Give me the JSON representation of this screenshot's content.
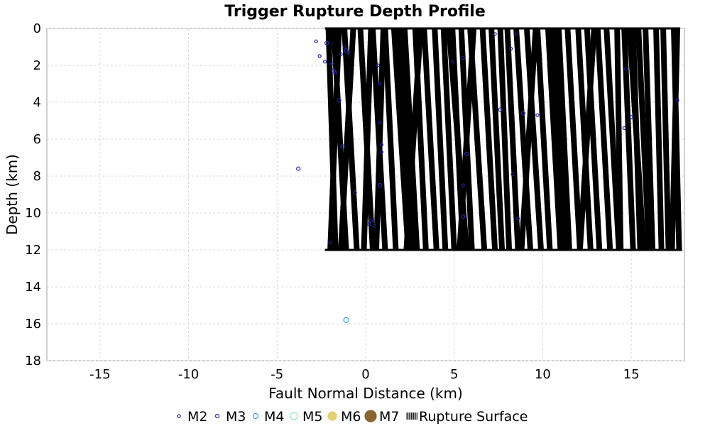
{
  "chart_data": {
    "type": "scatter",
    "title": "Trigger Rupture Depth Profile",
    "xlabel": "Fault Normal Distance (km)",
    "ylabel": "Depth (km)",
    "xlim": [
      -18,
      18
    ],
    "ylim": [
      0,
      18
    ],
    "y_inverted": true,
    "grid": true,
    "x_ticks": [
      -15,
      -10,
      -5,
      0,
      5,
      10,
      15
    ],
    "y_ticks": [
      0,
      2,
      4,
      6,
      8,
      10,
      12,
      14,
      16,
      18
    ],
    "legend_position": "bottom",
    "legend": [
      {
        "key": "M2",
        "label": "M2",
        "color": "#1f1f9a",
        "fill": "none",
        "size": 2
      },
      {
        "key": "M3",
        "label": "M3",
        "color": "#2a2ab0",
        "fill": "none",
        "size": 2.5
      },
      {
        "key": "M4",
        "label": "M4",
        "color": "#2aa7e0",
        "fill": "none",
        "size": 3.5
      },
      {
        "key": "M5",
        "label": "M5",
        "color": "#8fe0b0",
        "fill": "none",
        "size": 5
      },
      {
        "key": "M6",
        "label": "M6",
        "color": "#e3cf74",
        "fill": "#e3cf74",
        "size": 6
      },
      {
        "key": "M7",
        "label": "M7",
        "color": "#8a6530",
        "fill": "#8a6530",
        "size": 8
      },
      {
        "key": "RS",
        "label": "Rupture Surface",
        "color": "#000000",
        "fill": "none",
        "size": 0
      }
    ],
    "rupture_surface": {
      "depth_top": 0,
      "depth_bottom": 12,
      "segments": [
        [
          -2.2,
          -1.8
        ],
        [
          -1.6,
          -2.1
        ],
        [
          -1.9,
          -1.2
        ],
        [
          -1.3,
          -0.6
        ],
        [
          -0.8,
          -1.5
        ],
        [
          -0.4,
          0.3
        ],
        [
          0.2,
          -0.2
        ],
        [
          0.3,
          1.0
        ],
        [
          0.9,
          0.5
        ],
        [
          1.0,
          1.6
        ],
        [
          1.5,
          2.3
        ],
        [
          2.1,
          2.8
        ],
        [
          2.7,
          3.3
        ],
        [
          3.2,
          3.9
        ],
        [
          3.8,
          4.4
        ],
        [
          4.3,
          4.9
        ],
        [
          4.8,
          5.4
        ],
        [
          5.3,
          5.9
        ],
        [
          5.8,
          6.6
        ],
        [
          6.5,
          7.2
        ],
        [
          7.0,
          7.6
        ],
        [
          7.5,
          8.0
        ],
        [
          7.9,
          8.5
        ],
        [
          8.4,
          9.2
        ],
        [
          9.0,
          9.8
        ],
        [
          9.6,
          10.3
        ],
        [
          10.2,
          10.9
        ],
        [
          10.8,
          11.4
        ],
        [
          11.3,
          12.0
        ],
        [
          11.9,
          12.6
        ],
        [
          12.4,
          13.1
        ],
        [
          13.0,
          13.7
        ],
        [
          13.5,
          14.2
        ],
        [
          14.1,
          14.3
        ],
        [
          14.5,
          15.0
        ],
        [
          15.0,
          15.4
        ],
        [
          15.3,
          15.9
        ],
        [
          15.7,
          16.1
        ],
        [
          16.3,
          16.6
        ],
        [
          16.7,
          17.0
        ],
        [
          17.3,
          17.6
        ],
        [
          17.5,
          17.2
        ],
        [
          3.0,
          2.2
        ],
        [
          6.0,
          5.2
        ],
        [
          9.5,
          8.7
        ],
        [
          12.8,
          12.0
        ],
        [
          4.6,
          5.6
        ],
        [
          1.8,
          2.6
        ],
        [
          10.5,
          11.2
        ],
        [
          14.8,
          15.6
        ]
      ]
    },
    "series": [
      {
        "name": "M2",
        "points": [
          [
            -2.8,
            0.7
          ],
          [
            -2.6,
            1.5
          ],
          [
            -2.3,
            1.8
          ],
          [
            -1.9,
            1.9
          ],
          [
            -1.7,
            2.4
          ],
          [
            -1.4,
            1.4
          ],
          [
            -1.2,
            1.0
          ],
          [
            -1.0,
            1.3
          ],
          [
            -2.0,
            11.6
          ],
          [
            -0.6,
            8.9
          ],
          [
            0.3,
            10.4
          ],
          [
            0.5,
            10.7
          ],
          [
            0.8,
            3.0
          ],
          [
            0.9,
            6.3
          ],
          [
            0.9,
            6.7
          ],
          [
            0.8,
            5.1
          ],
          [
            0.7,
            2.0
          ],
          [
            7.3,
            0.3
          ],
          [
            8.2,
            1.1
          ],
          [
            8.5,
            0.3
          ],
          [
            8.3,
            7.9
          ],
          [
            8.6,
            10.3
          ],
          [
            9.7,
            4.7
          ],
          [
            14.6,
            5.4
          ],
          [
            15.0,
            4.8
          ],
          [
            17.6,
            3.9
          ],
          [
            5.5,
            8.5
          ],
          [
            4.9,
            1.8
          ],
          [
            5.5,
            1.6
          ],
          [
            14.7,
            2.2
          ]
        ]
      },
      {
        "name": "M3",
        "points": [
          [
            -2.2,
            0.8
          ],
          [
            -1.8,
            2.3
          ],
          [
            -1.5,
            3.9
          ],
          [
            -1.3,
            6.4
          ],
          [
            -3.8,
            7.6
          ],
          [
            -1.1,
            1.2
          ],
          [
            0.8,
            8.5
          ],
          [
            5.5,
            10.2
          ],
          [
            7.6,
            4.4
          ],
          [
            8.9,
            4.6
          ],
          [
            5.7,
            6.8
          ],
          [
            0.2,
            10.6
          ]
        ]
      },
      {
        "name": "M4",
        "points": [
          [
            -1.1,
            15.8
          ]
        ]
      },
      {
        "name": "M5",
        "points": []
      },
      {
        "name": "M6",
        "points": []
      },
      {
        "name": "M7",
        "points": []
      }
    ]
  }
}
